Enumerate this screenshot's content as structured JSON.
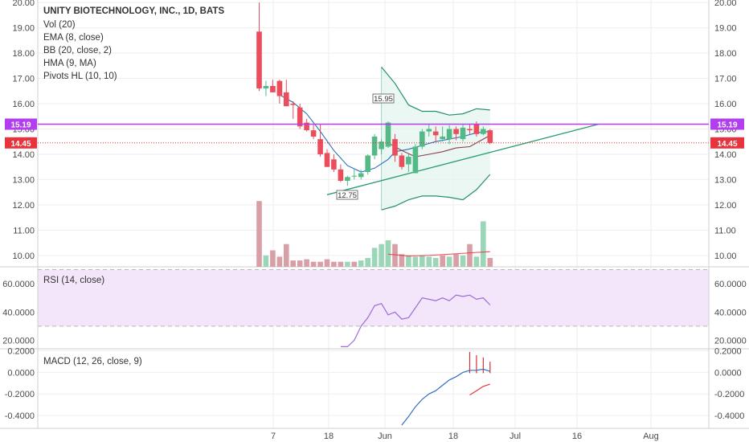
{
  "legend": {
    "title": "UNITY BIOTECHNOLOGY, INC., 1D, BATS",
    "indicators": [
      "Vol (20)",
      "EMA (8, close)",
      "BB (20, close, 2)",
      "HMA (9, MA)",
      "Pivots HL (10, 10)"
    ]
  },
  "price_pane": {
    "ticks": [
      "20.00",
      "19.00",
      "18.00",
      "17.00",
      "16.00",
      "15.00",
      "14.00",
      "13.00",
      "12.00",
      "11.00",
      "10.00"
    ],
    "tick_values": [
      20,
      19,
      18,
      17,
      16,
      15,
      14,
      13,
      12,
      11,
      10
    ],
    "ylim": [
      9.55,
      20.1
    ],
    "resistance_price": 15.19,
    "resistance_tag": "15.19",
    "last_price": 14.45,
    "last_tag": "14.45",
    "pivot_high": "15.95",
    "pivot_low": "12.75"
  },
  "rsi_pane": {
    "label": "RSI (14, close)",
    "ticks": [
      "60.0000",
      "40.0000",
      "20.0000"
    ],
    "tick_values": [
      60,
      40,
      20
    ],
    "band": [
      30,
      70
    ],
    "ylim": [
      14,
      72
    ]
  },
  "macd_pane": {
    "label": "MACD (12, 26, close, 9)",
    "ticks": [
      "0.2000",
      "0.0000",
      "-0.2000",
      "-0.4000"
    ],
    "tick_values": [
      0.2,
      0,
      -0.2,
      -0.4
    ],
    "ylim": [
      -0.52,
      0.22
    ]
  },
  "x_axis": {
    "ticks": [
      "7",
      "18",
      "Jun",
      "18",
      "Jul",
      "16",
      "Aug"
    ]
  },
  "colors": {
    "up": "#53b987",
    "down": "#eb4d5c",
    "up_vol": "#9bd6b8",
    "down_vol": "#d8a0a6",
    "resistance": "#b23ef0",
    "bb": "#248f72",
    "rsi": "#9c6ad9",
    "rsi_band": "#f3e6fb",
    "macd": "#2f6fc4",
    "signal": "#e8333d"
  },
  "chart_data": {
    "type": "candlestick",
    "title": "UNITY BIOTECHNOLOGY, INC., 1D, BATS",
    "candles": [
      {
        "o": 18.85,
        "h": 20.0,
        "l": 16.5,
        "c": 16.6
      },
      {
        "o": 16.6,
        "h": 16.9,
        "l": 16.3,
        "c": 16.7
      },
      {
        "o": 16.7,
        "h": 16.95,
        "l": 16.45,
        "c": 16.45
      },
      {
        "o": 16.9,
        "h": 16.95,
        "l": 16.0,
        "c": 16.3
      },
      {
        "o": 16.45,
        "h": 16.95,
        "l": 15.9,
        "c": 15.9
      },
      {
        "o": 16.0,
        "h": 16.1,
        "l": 15.4,
        "c": 15.95
      },
      {
        "o": 15.85,
        "h": 16.0,
        "l": 15.0,
        "c": 15.1
      },
      {
        "o": 15.25,
        "h": 15.4,
        "l": 14.9,
        "c": 14.95
      },
      {
        "o": 14.95,
        "h": 15.2,
        "l": 14.6,
        "c": 14.7
      },
      {
        "o": 14.6,
        "h": 15.2,
        "l": 13.9,
        "c": 14.0
      },
      {
        "o": 14.05,
        "h": 14.2,
        "l": 13.5,
        "c": 13.5
      },
      {
        "o": 13.8,
        "h": 14.0,
        "l": 13.3,
        "c": 13.4
      },
      {
        "o": 13.4,
        "h": 13.6,
        "l": 12.9,
        "c": 12.95
      },
      {
        "o": 12.95,
        "h": 13.15,
        "l": 12.75,
        "c": 13.1
      },
      {
        "o": 13.15,
        "h": 13.4,
        "l": 13.0,
        "c": 13.15
      },
      {
        "o": 13.1,
        "h": 13.4,
        "l": 13.0,
        "c": 13.25
      },
      {
        "o": 13.3,
        "h": 14.0,
        "l": 13.2,
        "c": 13.95
      },
      {
        "o": 13.95,
        "h": 14.8,
        "l": 13.8,
        "c": 14.7
      },
      {
        "o": 14.2,
        "h": 14.6,
        "l": 14.0,
        "c": 14.5
      },
      {
        "o": 14.3,
        "h": 15.3,
        "l": 14.25,
        "c": 15.25
      },
      {
        "o": 14.6,
        "h": 14.8,
        "l": 13.7,
        "c": 13.95
      },
      {
        "o": 13.95,
        "h": 14.05,
        "l": 13.4,
        "c": 13.5
      },
      {
        "o": 13.6,
        "h": 14.0,
        "l": 13.3,
        "c": 13.9
      },
      {
        "o": 13.25,
        "h": 14.4,
        "l": 13.25,
        "c": 14.3
      },
      {
        "o": 14.3,
        "h": 15.0,
        "l": 14.2,
        "c": 14.9
      },
      {
        "o": 14.9,
        "h": 15.2,
        "l": 14.7,
        "c": 15.0
      },
      {
        "o": 14.9,
        "h": 15.1,
        "l": 14.5,
        "c": 14.75
      },
      {
        "o": 14.6,
        "h": 15.1,
        "l": 14.5,
        "c": 14.7
      },
      {
        "o": 14.6,
        "h": 15.15,
        "l": 14.4,
        "c": 15.0
      },
      {
        "o": 15.0,
        "h": 15.1,
        "l": 14.55,
        "c": 14.8
      },
      {
        "o": 14.6,
        "h": 15.2,
        "l": 14.5,
        "c": 15.05
      },
      {
        "o": 15.0,
        "h": 15.2,
        "l": 14.8,
        "c": 14.95
      },
      {
        "o": 15.2,
        "h": 15.3,
        "l": 14.7,
        "c": 14.8
      },
      {
        "o": 14.8,
        "h": 15.1,
        "l": 14.75,
        "c": 15.0
      },
      {
        "o": 14.95,
        "h": 15.0,
        "l": 14.4,
        "c": 14.45
      }
    ],
    "volume": [
      {
        "v": 12.15,
        "up": false
      },
      {
        "v": 10.0,
        "up": true
      },
      {
        "v": 10.2,
        "up": false
      },
      {
        "v": 9.95,
        "up": false
      },
      {
        "v": 10.45,
        "up": false
      },
      {
        "v": 9.8,
        "up": false
      },
      {
        "v": 9.8,
        "up": false
      },
      {
        "v": 9.85,
        "up": false
      },
      {
        "v": 9.75,
        "up": false
      },
      {
        "v": 9.75,
        "up": false
      },
      {
        "v": 9.85,
        "up": false
      },
      {
        "v": 9.75,
        "up": false
      },
      {
        "v": 9.75,
        "up": false
      },
      {
        "v": 9.75,
        "up": true
      },
      {
        "v": 9.75,
        "up": false
      },
      {
        "v": 9.8,
        "up": true
      },
      {
        "v": 9.9,
        "up": true
      },
      {
        "v": 10.3,
        "up": true
      },
      {
        "v": 10.45,
        "up": true
      },
      {
        "v": 10.6,
        "up": true
      },
      {
        "v": 10.45,
        "up": false
      },
      {
        "v": 10.05,
        "up": false
      },
      {
        "v": 10.0,
        "up": true
      },
      {
        "v": 9.95,
        "up": true
      },
      {
        "v": 10.0,
        "up": true
      },
      {
        "v": 9.95,
        "up": true
      },
      {
        "v": 9.9,
        "up": true
      },
      {
        "v": 10.0,
        "up": false
      },
      {
        "v": 9.95,
        "up": true
      },
      {
        "v": 10.05,
        "up": false
      },
      {
        "v": 10.0,
        "up": true
      },
      {
        "v": 10.45,
        "up": false
      },
      {
        "v": 9.95,
        "up": true
      },
      {
        "v": 11.35,
        "up": true
      },
      {
        "v": 9.9,
        "up": false
      }
    ],
    "volume_ma": [
      {
        "i": 19,
        "v": 10.05
      },
      {
        "i": 22,
        "v": 9.98
      },
      {
        "i": 25,
        "v": 10.0
      },
      {
        "i": 28,
        "v": 10.05
      },
      {
        "i": 31,
        "v": 10.1
      },
      {
        "i": 34,
        "v": 10.15
      }
    ],
    "ema": [
      {
        "i": 3,
        "v": 16.35
      },
      {
        "i": 5,
        "v": 16.05
      },
      {
        "i": 7,
        "v": 15.6
      },
      {
        "i": 9,
        "v": 14.9
      },
      {
        "i": 11,
        "v": 14.15
      },
      {
        "i": 13,
        "v": 13.55
      },
      {
        "i": 15,
        "v": 13.3
      },
      {
        "i": 17,
        "v": 13.45
      },
      {
        "i": 19,
        "v": 13.8
      },
      {
        "i": 20,
        "v": 14.1
      },
      {
        "i": 22,
        "v": 14.2
      },
      {
        "i": 24,
        "v": 14.35
      },
      {
        "i": 26,
        "v": 14.5
      },
      {
        "i": 28,
        "v": 14.6
      },
      {
        "i": 30,
        "v": 14.7
      },
      {
        "i": 32,
        "v": 14.85
      },
      {
        "i": 34,
        "v": 14.9
      }
    ],
    "hma": [
      {
        "i": 19,
        "v": 14.45
      },
      {
        "i": 21,
        "v": 14.15
      },
      {
        "i": 23,
        "v": 13.9
      },
      {
        "i": 25,
        "v": 14.0
      },
      {
        "i": 27,
        "v": 14.1
      },
      {
        "i": 29,
        "v": 14.25
      },
      {
        "i": 31,
        "v": 14.3
      },
      {
        "i": 33,
        "v": 14.6
      },
      {
        "i": 34,
        "v": 14.75
      }
    ],
    "bb_upper": [
      {
        "i": 18,
        "v": 17.45
      },
      {
        "i": 20,
        "v": 16.8
      },
      {
        "i": 22,
        "v": 15.95
      },
      {
        "i": 24,
        "v": 15.7
      },
      {
        "i": 26,
        "v": 15.7
      },
      {
        "i": 28,
        "v": 15.55
      },
      {
        "i": 30,
        "v": 15.6
      },
      {
        "i": 32,
        "v": 15.8
      },
      {
        "i": 34,
        "v": 15.75
      }
    ],
    "bb_lower": [
      {
        "i": 18,
        "v": 11.8
      },
      {
        "i": 20,
        "v": 11.95
      },
      {
        "i": 22,
        "v": 12.2
      },
      {
        "i": 24,
        "v": 12.35
      },
      {
        "i": 26,
        "v": 12.35
      },
      {
        "i": 28,
        "v": 12.3
      },
      {
        "i": 30,
        "v": 12.2
      },
      {
        "i": 32,
        "v": 12.6
      },
      {
        "i": 34,
        "v": 13.2
      }
    ],
    "trendline": [
      {
        "i": 10,
        "v": 12.4
      },
      {
        "i": 50,
        "v": 15.19
      }
    ],
    "rsi": [
      {
        "i": 12,
        "v": 15.5
      },
      {
        "i": 13,
        "v": 15.5
      },
      {
        "i": 14,
        "v": 20
      },
      {
        "i": 15,
        "v": 30
      },
      {
        "i": 16,
        "v": 36
      },
      {
        "i": 17,
        "v": 44.5
      },
      {
        "i": 18,
        "v": 46
      },
      {
        "i": 19,
        "v": 38
      },
      {
        "i": 20,
        "v": 40
      },
      {
        "i": 21,
        "v": 35
      },
      {
        "i": 22,
        "v": 36
      },
      {
        "i": 23,
        "v": 43
      },
      {
        "i": 24,
        "v": 50
      },
      {
        "i": 25,
        "v": 49
      },
      {
        "i": 26,
        "v": 48
      },
      {
        "i": 27,
        "v": 50
      },
      {
        "i": 28,
        "v": 48
      },
      {
        "i": 29,
        "v": 52
      },
      {
        "i": 30,
        "v": 51
      },
      {
        "i": 31,
        "v": 52
      },
      {
        "i": 32,
        "v": 49
      },
      {
        "i": 33,
        "v": 50
      },
      {
        "i": 34,
        "v": 45
      }
    ],
    "macd": [
      {
        "i": 21,
        "v": -0.49
      },
      {
        "i": 22,
        "v": -0.41
      },
      {
        "i": 23,
        "v": -0.32
      },
      {
        "i": 24,
        "v": -0.25
      },
      {
        "i": 25,
        "v": -0.2
      },
      {
        "i": 26,
        "v": -0.17
      },
      {
        "i": 27,
        "v": -0.12
      },
      {
        "i": 28,
        "v": -0.07
      },
      {
        "i": 29,
        "v": -0.04
      },
      {
        "i": 30,
        "v": 0.0
      },
      {
        "i": 31,
        "v": 0.02
      },
      {
        "i": 32,
        "v": 0.02
      },
      {
        "i": 33,
        "v": 0.03
      },
      {
        "i": 34,
        "v": 0.01
      }
    ],
    "signal": [
      {
        "i": 31,
        "v": -0.21
      },
      {
        "i": 32,
        "v": -0.17
      },
      {
        "i": 33,
        "v": -0.13
      },
      {
        "i": 34,
        "v": -0.11
      }
    ],
    "hist": [
      {
        "i": 31,
        "v": 0.19
      },
      {
        "i": 32,
        "v": 0.16
      },
      {
        "i": 33,
        "v": 0.14
      },
      {
        "i": 34,
        "v": 0.1
      }
    ],
    "x_ticks": [
      "7",
      "18",
      "Jun",
      "18",
      "Jul",
      "16",
      "Aug"
    ]
  }
}
